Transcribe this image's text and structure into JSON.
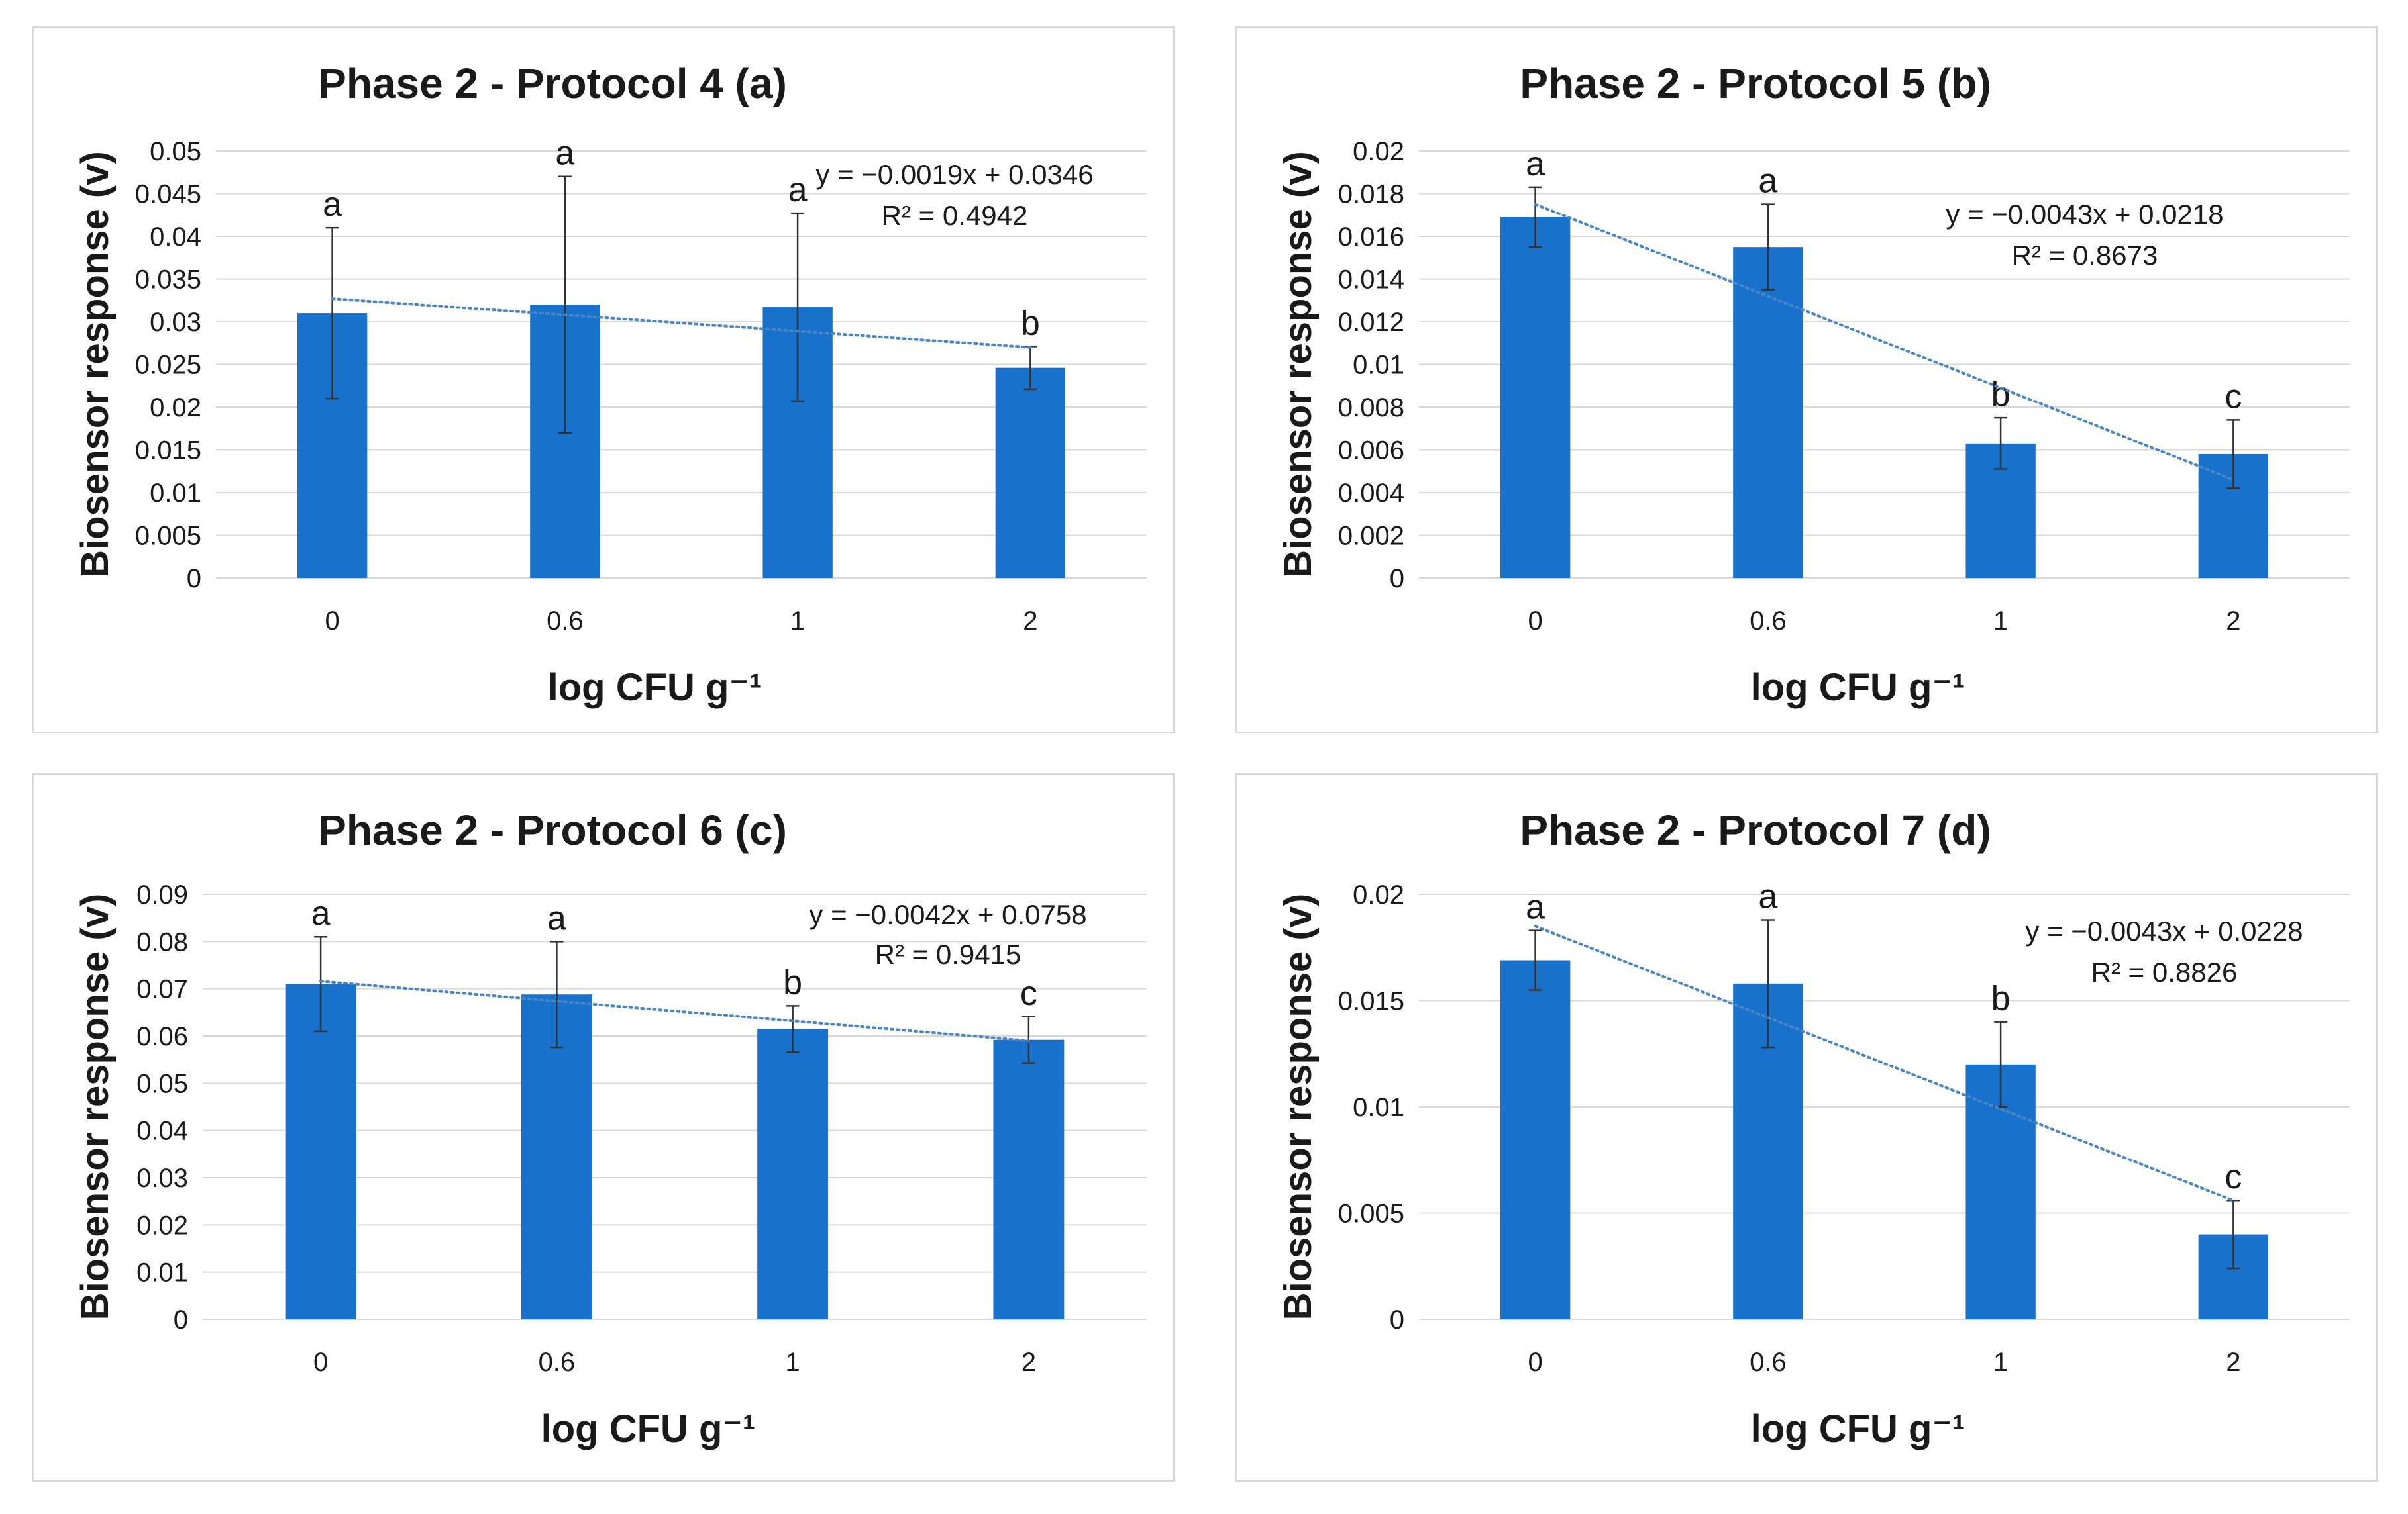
{
  "colors": {
    "bar": "#1872CC",
    "trendline": "#4A86C6",
    "grid": "#d9d9d9",
    "error_bar": "#333333"
  },
  "chart_data": [
    {
      "type": "bar",
      "title": "Phase 2 - Protocol 4 (a)",
      "xlabel": "log CFU g⁻¹",
      "ylabel": "Biosensor response (v)",
      "categories": [
        "0",
        "0.6",
        "1",
        "2"
      ],
      "values": [
        0.031,
        0.032,
        0.0317,
        0.0246
      ],
      "error": [
        0.01,
        0.015,
        0.011,
        0.0025
      ],
      "significance": [
        "a",
        "a",
        "a",
        "b"
      ],
      "ylim": [
        0,
        0.05
      ],
      "yticks": [
        "0",
        "0.005",
        "0.01",
        "0.015",
        "0.02",
        "0.025",
        "0.03",
        "0.035",
        "0.04",
        "0.045",
        "0.05"
      ],
      "trendline": {
        "type": "linear",
        "slope": -0.0019,
        "intercept": 0.0346,
        "equation": "y = −0.0019x + 0.0346",
        "r2": "R² = 0.4942"
      },
      "grid": true
    },
    {
      "type": "bar",
      "title": "Phase 2 - Protocol 5 (b)",
      "xlabel": "log CFU g⁻¹",
      "ylabel": "Biosensor response (v)",
      "categories": [
        "0",
        "0.6",
        "1",
        "2"
      ],
      "values": [
        0.0169,
        0.0155,
        0.0063,
        0.0058
      ],
      "error": [
        0.0014,
        0.002,
        0.0012,
        0.0016
      ],
      "significance": [
        "a",
        "a",
        "b",
        "c"
      ],
      "ylim": [
        0,
        0.02
      ],
      "yticks": [
        "0",
        "0.002",
        "0.004",
        "0.006",
        "0.008",
        "0.01",
        "0.012",
        "0.014",
        "0.016",
        "0.018",
        "0.02"
      ],
      "trendline": {
        "type": "linear",
        "slope": -0.0043,
        "intercept": 0.0218,
        "equation": "y = −0.0043x + 0.0218",
        "r2": "R² = 0.8673"
      },
      "grid": true
    },
    {
      "type": "bar",
      "title": "Phase 2 - Protocol 6 (c)",
      "xlabel": "log CFU g⁻¹",
      "ylabel": "Biosensor response (v)",
      "categories": [
        "0",
        "0.6",
        "1",
        "2"
      ],
      "values": [
        0.071,
        0.0688,
        0.0615,
        0.0592
      ],
      "error": [
        0.01,
        0.0112,
        0.0049,
        0.0049
      ],
      "significance": [
        "a",
        "a",
        "b",
        "c"
      ],
      "ylim": [
        0,
        0.09
      ],
      "yticks": [
        "0",
        "0.01",
        "0.02",
        "0.03",
        "0.04",
        "0.05",
        "0.06",
        "0.07",
        "0.08",
        "0.09"
      ],
      "trendline": {
        "type": "linear",
        "slope": -0.0042,
        "intercept": 0.0758,
        "equation": "y = −0.0042x + 0.0758",
        "r2": "R² = 0.9415"
      },
      "grid": true
    },
    {
      "type": "bar",
      "title": "Phase 2 - Protocol 7 (d)",
      "xlabel": "log CFU g⁻¹",
      "ylabel": "Biosensor response (v)",
      "categories": [
        "0",
        "0.6",
        "1",
        "2"
      ],
      "values": [
        0.0169,
        0.0158,
        0.012,
        0.004
      ],
      "error": [
        0.0014,
        0.003,
        0.002,
        0.0016
      ],
      "significance": [
        "a",
        "a",
        "b",
        "c"
      ],
      "ylim": [
        0,
        0.02
      ],
      "yticks": [
        "0",
        "0.005",
        "0.01",
        "0.015",
        "0.02"
      ],
      "trendline": {
        "type": "linear",
        "slope": -0.0043,
        "intercept": 0.0228,
        "equation": "y = −0.0043x + 0.0228",
        "r2": "R² = 0.8826"
      },
      "grid": true
    }
  ]
}
